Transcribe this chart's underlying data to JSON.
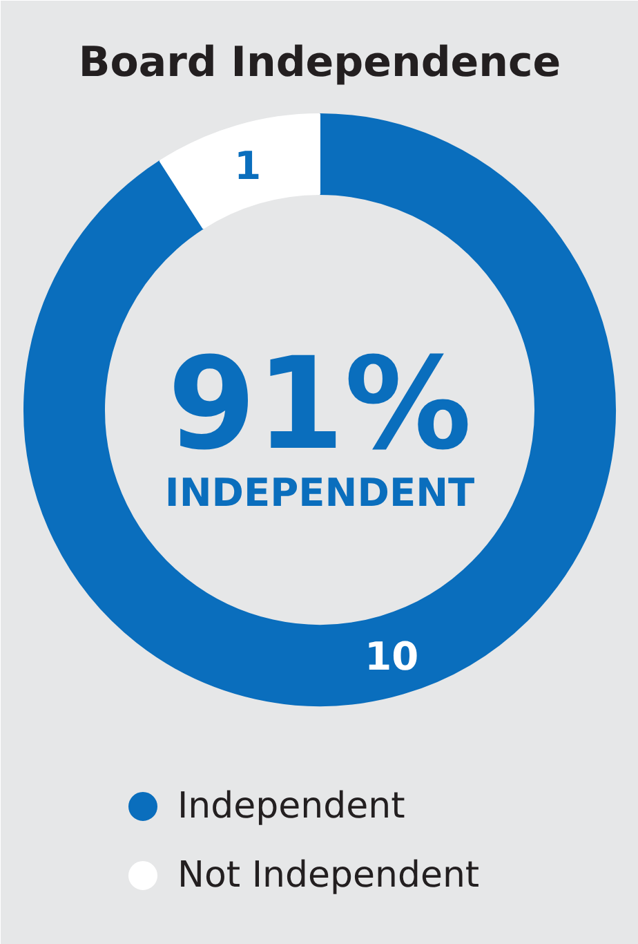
{
  "chart_data": {
    "type": "donut",
    "title": "Board Independence",
    "categories": [
      "Independent",
      "Not Independent"
    ],
    "values": [
      10,
      1
    ],
    "colors": [
      "#0a6ebd",
      "#ffffff"
    ],
    "data_labels": true,
    "legend": "bottom",
    "annotations": [
      "91%",
      "INDEPENDENT"
    ]
  }
}
